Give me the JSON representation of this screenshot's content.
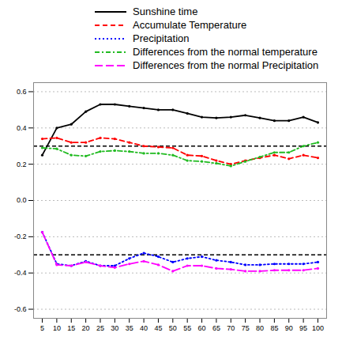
{
  "chart_data": {
    "type": "line",
    "legend": "top",
    "grid": true,
    "marker": "circle",
    "x": [
      5,
      10,
      15,
      20,
      25,
      30,
      35,
      40,
      45,
      50,
      55,
      60,
      65,
      70,
      75,
      80,
      85,
      90,
      95,
      100
    ],
    "xlim": [
      2,
      103
    ],
    "xticks": [
      5,
      10,
      15,
      20,
      25,
      30,
      35,
      40,
      45,
      50,
      55,
      60,
      65,
      70,
      75,
      80,
      85,
      90,
      95,
      100
    ],
    "ylim": [
      -0.65,
      0.65
    ],
    "yticks": [
      -0.6,
      -0.4,
      -0.2,
      {
        "value": 0,
        "label": "0.0"
      },
      0.2,
      0.4,
      0.6
    ],
    "hlines": [
      0.3,
      -0.3
    ],
    "series": [
      {
        "name": "Sunshine time",
        "color": "#000000",
        "line_style": "solid",
        "values": [
          0.25,
          0.4,
          0.42,
          0.49,
          0.53,
          0.53,
          0.52,
          0.51,
          0.5,
          0.5,
          0.48,
          0.46,
          0.455,
          0.46,
          0.47,
          0.455,
          0.44,
          0.44,
          0.46,
          0.43
        ]
      },
      {
        "name": "Accumulate Temperature",
        "color": "#ff0000",
        "line_style": "dashed",
        "values": [
          0.34,
          0.345,
          0.32,
          0.32,
          0.345,
          0.34,
          0.32,
          0.3,
          0.295,
          0.29,
          0.25,
          0.245,
          0.22,
          0.2,
          0.22,
          0.235,
          0.25,
          0.23,
          0.25,
          0.235
        ]
      },
      {
        "name": "Precipitation",
        "color": "#0000ff",
        "line_style": "dotted",
        "values": [
          -0.175,
          -0.35,
          -0.36,
          -0.335,
          -0.36,
          -0.36,
          -0.32,
          -0.29,
          -0.31,
          -0.34,
          -0.32,
          -0.31,
          -0.33,
          -0.34,
          -0.355,
          -0.355,
          -0.35,
          -0.35,
          -0.35,
          -0.34
        ]
      },
      {
        "name": "Differences from the normal temperature",
        "color": "#22bb22",
        "line_style": "dashdot",
        "values": [
          0.29,
          0.285,
          0.25,
          0.245,
          0.27,
          0.275,
          0.27,
          0.26,
          0.26,
          0.25,
          0.22,
          0.215,
          0.205,
          0.19,
          0.215,
          0.24,
          0.265,
          0.265,
          0.3,
          0.32
        ]
      },
      {
        "name": "Differences from the normal Precipitation",
        "color": "#ff00ff",
        "line_style": "longdash",
        "values": [
          -0.175,
          -0.355,
          -0.36,
          -0.34,
          -0.36,
          -0.37,
          -0.35,
          -0.335,
          -0.355,
          -0.39,
          -0.36,
          -0.36,
          -0.375,
          -0.38,
          -0.39,
          -0.39,
          -0.385,
          -0.385,
          -0.385,
          -0.375
        ]
      }
    ]
  }
}
